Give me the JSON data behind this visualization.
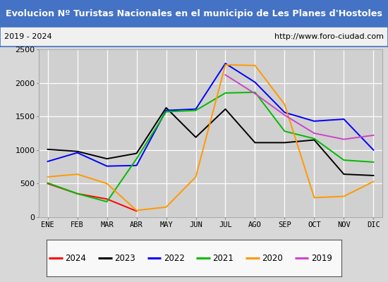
{
  "title": "Evolucion Nº Turistas Nacionales en el municipio de Les Planes d'Hostoles",
  "subtitle_left": "2019 - 2024",
  "subtitle_right": "http://www.foro-ciudad.com",
  "months": [
    "ENE",
    "FEB",
    "MAR",
    "ABR",
    "MAY",
    "JUN",
    "JUL",
    "AGO",
    "SEP",
    "OCT",
    "NOV",
    "DIC"
  ],
  "ylim": [
    0,
    2500
  ],
  "yticks": [
    0,
    500,
    1000,
    1500,
    2000,
    2500
  ],
  "series": {
    "2024": {
      "color": "#ff0000",
      "values": [
        500,
        350,
        270,
        90,
        null,
        null,
        null,
        null,
        null,
        null,
        null,
        null
      ]
    },
    "2023": {
      "color": "#000000",
      "values": [
        1010,
        980,
        870,
        950,
        1630,
        1190,
        1610,
        1110,
        1110,
        1150,
        640,
        620
      ]
    },
    "2022": {
      "color": "#0000ff",
      "values": [
        830,
        960,
        760,
        770,
        1590,
        1610,
        2290,
        2010,
        1560,
        1430,
        1460,
        1000
      ]
    },
    "2021": {
      "color": "#00bb00",
      "values": [
        510,
        350,
        230,
        870,
        1570,
        1590,
        1850,
        1860,
        1280,
        1170,
        850,
        820
      ]
    },
    "2020": {
      "color": "#ff9900",
      "values": [
        600,
        640,
        500,
        100,
        150,
        600,
        2270,
        2260,
        1680,
        290,
        310,
        530
      ]
    },
    "2019": {
      "color": "#cc44cc",
      "values": [
        null,
        null,
        null,
        null,
        null,
        null,
        2120,
        1840,
        1520,
        1250,
        1160,
        1220
      ]
    }
  },
  "background_color": "#d8d8d8",
  "plot_bg_color": "#d0d0d0",
  "title_bg_color": "#4472c4",
  "title_font_color": "#ffffff",
  "subtitle_bg_color": "#f0f0f0",
  "grid_color": "#ffffff",
  "legend_order": [
    "2024",
    "2023",
    "2022",
    "2021",
    "2020",
    "2019"
  ]
}
